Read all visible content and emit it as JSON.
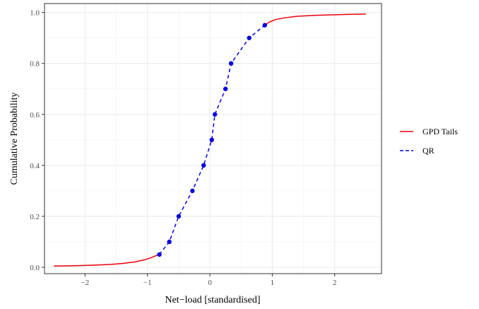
{
  "chart_data": {
    "type": "line",
    "xlabel": "Net−load [standardised]",
    "ylabel": "Cumulative Probability",
    "xlim": [
      -2.65,
      2.75
    ],
    "ylim": [
      -0.025,
      1.035
    ],
    "x_ticks": [
      -2,
      -1,
      0,
      1,
      2
    ],
    "x_tick_labels": [
      "−2",
      "−1",
      "0",
      "1",
      "2"
    ],
    "y_ticks": [
      0.0,
      0.2,
      0.4,
      0.6,
      0.8,
      1.0
    ],
    "y_tick_labels": [
      "0.0",
      "0.2",
      "0.4",
      "0.6",
      "0.8",
      "1.0"
    ],
    "grid": true,
    "legend_position": "right",
    "series": [
      {
        "name": "GPD Tails",
        "color": "#e8000b",
        "style": "solid",
        "segments": [
          [
            [
              -2.5,
              0.005
            ],
            [
              -2.2,
              0.006
            ],
            [
              -1.9,
              0.008
            ],
            [
              -1.6,
              0.011
            ],
            [
              -1.4,
              0.015
            ],
            [
              -1.2,
              0.021
            ],
            [
              -1.05,
              0.029
            ],
            [
              -0.95,
              0.037
            ],
            [
              -0.85,
              0.047
            ],
            [
              -0.81,
              0.05
            ]
          ],
          [
            [
              0.88,
              0.95
            ],
            [
              0.95,
              0.962
            ],
            [
              1.05,
              0.972
            ],
            [
              1.2,
              0.979
            ],
            [
              1.4,
              0.985
            ],
            [
              1.7,
              0.989
            ],
            [
              2.0,
              0.991
            ],
            [
              2.3,
              0.993
            ],
            [
              2.5,
              0.994
            ]
          ]
        ]
      },
      {
        "name": "QR",
        "color": "#0000e0",
        "style": "dashed",
        "points": [
          [
            -0.81,
            0.05
          ],
          [
            -0.65,
            0.1
          ],
          [
            -0.5,
            0.2
          ],
          [
            -0.28,
            0.3
          ],
          [
            -0.1,
            0.4
          ],
          [
            0.03,
            0.5
          ],
          [
            0.08,
            0.6
          ],
          [
            0.25,
            0.7
          ],
          [
            0.34,
            0.8
          ],
          [
            0.63,
            0.9
          ],
          [
            0.88,
            0.95
          ]
        ]
      }
    ]
  }
}
